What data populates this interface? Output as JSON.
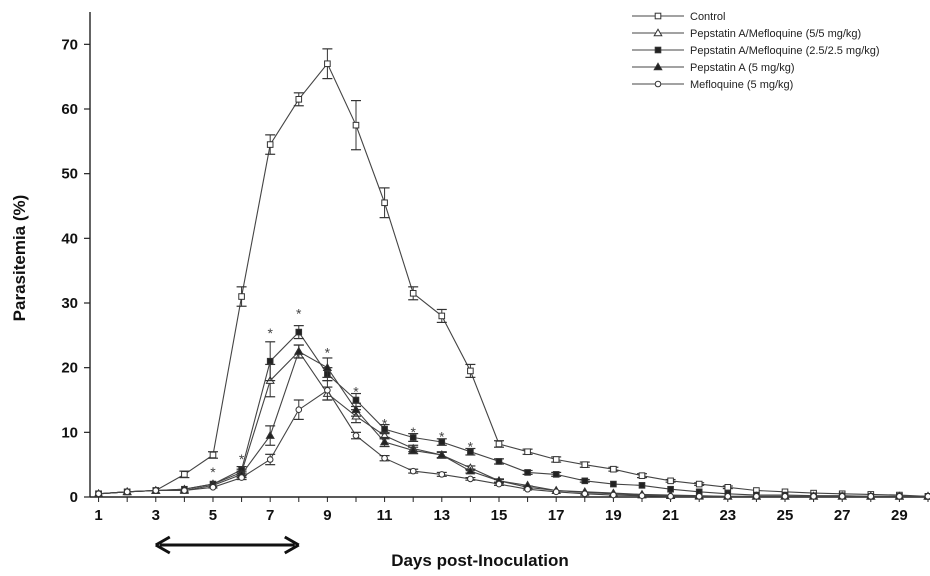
{
  "chart_data": {
    "type": "line",
    "xlabel": "Days post-Inoculation",
    "ylabel": "Parasitemia (%)",
    "xlim": [
      0.7,
      30
    ],
    "ylim": [
      0,
      75
    ],
    "x_ticks": [
      "1",
      "3",
      "5",
      "7",
      "9",
      "11",
      "13",
      "15",
      "17",
      "19",
      "21",
      "23",
      "25",
      "27",
      "29"
    ],
    "y_ticks": [
      "0",
      "10",
      "20",
      "30",
      "40",
      "50",
      "60",
      "70"
    ],
    "legend_position": "top-right",
    "series": [
      {
        "name": "Control",
        "marker": "open-square",
        "x": [
          1,
          2,
          3,
          4,
          5,
          6,
          7,
          8,
          9,
          10,
          11,
          12,
          13,
          14,
          15,
          16,
          17,
          18,
          19,
          20,
          21,
          22,
          23,
          24,
          25,
          26,
          27,
          28,
          29,
          30
        ],
        "y": [
          0.5,
          0.8,
          1.0,
          3.5,
          6.5,
          31,
          54.5,
          61.5,
          67,
          57.5,
          45.5,
          31.5,
          28,
          19.5,
          8.2,
          7,
          5.8,
          5,
          4.3,
          3.3,
          2.5,
          2,
          1.5,
          1,
          0.8,
          0.6,
          0.5,
          0.4,
          0.3,
          0.1
        ],
        "err": [
          0,
          0,
          0,
          0.5,
          0.5,
          1.5,
          1.5,
          1,
          2.3,
          3.8,
          2.3,
          1,
          1,
          1,
          0.5,
          0.4,
          0.4,
          0.4,
          0.3,
          0.3,
          0.2,
          0.2,
          0.2,
          0,
          0,
          0,
          0,
          0,
          0,
          0
        ]
      },
      {
        "name": "Pepstatin A/Mefloquine (5/5 mg/kg)",
        "marker": "open-triangle",
        "x": [
          1,
          2,
          3,
          4,
          5,
          6,
          7,
          8,
          9,
          10,
          11,
          12,
          13,
          14,
          15,
          16,
          17,
          18,
          19,
          20,
          21,
          22,
          23,
          24,
          25,
          26,
          27,
          28,
          29,
          30
        ],
        "y": [
          0.5,
          0.8,
          1.0,
          1.2,
          2.0,
          3.8,
          18,
          22.5,
          16,
          12.5,
          9.5,
          7.5,
          6.5,
          4.5,
          2.5,
          1.5,
          1.0,
          0.8,
          0.6,
          0.4,
          0.3,
          0.2,
          0.1,
          0.1,
          0.1,
          0.1,
          0.1,
          0.1,
          0.1,
          0.1
        ],
        "err": [
          0,
          0,
          0,
          0,
          0,
          0.5,
          2.5,
          1,
          1,
          1,
          0.5,
          0.5,
          0.5,
          0.3,
          0.3,
          0.2,
          0,
          0,
          0,
          0,
          0,
          0,
          0,
          0,
          0,
          0,
          0,
          0,
          0,
          0
        ]
      },
      {
        "name": "Pepstatin A/Mefloquine (2.5/2.5 mg/kg)",
        "marker": "filled-square",
        "x": [
          1,
          2,
          3,
          4,
          5,
          6,
          7,
          8,
          9,
          10,
          11,
          12,
          13,
          14,
          15,
          16,
          17,
          18,
          19,
          20,
          21,
          22,
          23,
          24,
          25,
          26,
          27,
          28,
          29,
          30
        ],
        "y": [
          0.5,
          0.8,
          1.0,
          1.2,
          2.0,
          4.2,
          21,
          25.5,
          19,
          15,
          10.5,
          9.2,
          8.5,
          7,
          5.5,
          3.8,
          3.5,
          2.5,
          2,
          1.8,
          1.2,
          0.8,
          0.5,
          0.3,
          0.3,
          0.2,
          0.2,
          0.1,
          0.1,
          0.1
        ],
        "err": [
          0,
          0,
          0,
          0,
          0,
          0.5,
          3,
          1,
          1,
          1,
          0.7,
          0.6,
          0.5,
          0.5,
          0.4,
          0.3,
          0.3,
          0.2,
          0,
          0,
          0,
          0,
          0,
          0,
          0,
          0,
          0,
          0,
          0,
          0
        ]
      },
      {
        "name": "Pepstatin A (5 mg/kg)",
        "marker": "filled-triangle",
        "x": [
          1,
          2,
          3,
          4,
          5,
          6,
          7,
          8,
          9,
          10,
          11,
          12,
          13,
          14,
          15,
          16,
          17,
          18,
          19,
          20,
          21,
          22,
          23,
          24,
          25,
          26,
          27,
          28,
          29,
          30
        ],
        "y": [
          0.5,
          0.8,
          1.0,
          1.0,
          1.8,
          3.5,
          9.5,
          22.5,
          20,
          13.5,
          8.5,
          7.2,
          6.5,
          4,
          2.5,
          1.8,
          1.0,
          0.7,
          0.5,
          0.3,
          0.2,
          0.1,
          0.1,
          0.1,
          0.1,
          0.1,
          0.1,
          0.1,
          0.1,
          0.1
        ],
        "err": [
          0,
          0,
          0,
          0,
          0,
          0.5,
          1.5,
          1,
          1.5,
          1,
          0.7,
          0.5,
          0.4,
          0.3,
          0.2,
          0,
          0,
          0,
          0,
          0,
          0,
          0,
          0,
          0,
          0,
          0,
          0,
          0,
          0,
          0
        ]
      },
      {
        "name": "Mefloquine (5 mg/kg)",
        "marker": "open-circle",
        "x": [
          1,
          2,
          3,
          4,
          5,
          6,
          7,
          8,
          9,
          10,
          11,
          12,
          13,
          14,
          15,
          16,
          17,
          18,
          19,
          20,
          21,
          22,
          23,
          24,
          25,
          26,
          27,
          28,
          29,
          30
        ],
        "y": [
          0.5,
          0.8,
          1.0,
          1.0,
          1.5,
          3.0,
          5.8,
          13.5,
          16.5,
          9.5,
          6,
          4,
          3.5,
          2.8,
          2,
          1.2,
          0.8,
          0.5,
          0.3,
          0.2,
          0.1,
          0.1,
          0.1,
          0.1,
          0.1,
          0.1,
          0.1,
          0.1,
          0.1,
          0.1
        ],
        "err": [
          0,
          0,
          0,
          0,
          0,
          0.3,
          0.8,
          1.5,
          1.5,
          0.5,
          0.4,
          0.3,
          0.3,
          0.2,
          0.2,
          0,
          0,
          0,
          0,
          0,
          0,
          0,
          0,
          0,
          0,
          0,
          0,
          0,
          0,
          0
        ]
      }
    ],
    "annotations": [
      {
        "text": "*",
        "x": 5,
        "y": 4
      },
      {
        "text": "*",
        "x": 6,
        "y": 6
      },
      {
        "text": "*",
        "x": 7,
        "y": 25.5
      },
      {
        "text": "*",
        "x": 8,
        "y": 28.5
      },
      {
        "text": "*",
        "x": 9,
        "y": 22.5
      },
      {
        "text": "*",
        "x": 10,
        "y": 16.5
      },
      {
        "text": "*",
        "x": 11,
        "y": 11.5
      },
      {
        "text": "*",
        "x": 12,
        "y": 10.2
      },
      {
        "text": "*",
        "x": 13,
        "y": 9.5
      },
      {
        "text": "*",
        "x": 14,
        "y": 8
      }
    ],
    "treatment_period": {
      "from": 3,
      "to": 8
    }
  }
}
